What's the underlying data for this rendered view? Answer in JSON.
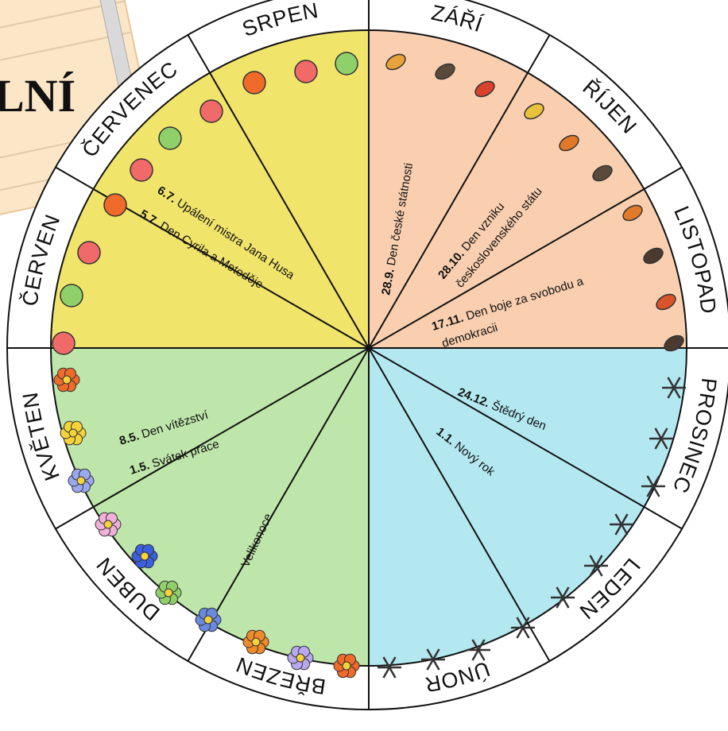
{
  "header": {
    "title": "LNÍ"
  },
  "months": [
    "ZÁŘÍ",
    "ŘÍJEN",
    "LISTOPAD",
    "PROSINEC",
    "LEDEN",
    "ÚNOR",
    "BŘEZEN",
    "DUBEN",
    "KVĚTEN",
    "ČERVEN",
    "ČERVENEC",
    "SRPEN"
  ],
  "events": [
    {
      "date": "6.7.",
      "lines": [
        "Upálení mistra Jana Husa"
      ]
    },
    {
      "date": "5.7.",
      "lines": [
        "Den Cyrila a Metoděje"
      ]
    },
    {
      "date": "28.9.",
      "lines": [
        "Den české státnosti"
      ]
    },
    {
      "date": "28.10.",
      "lines": [
        "Den vzniku",
        "československého státu"
      ]
    },
    {
      "date": "17.11.",
      "lines": [
        "Den boje za svobodu a",
        "demokracii"
      ]
    },
    {
      "date": "24.12.",
      "lines": [
        "Štědrý den"
      ]
    },
    {
      "date": "1.1.",
      "lines": [
        "Nový rok"
      ]
    },
    {
      "date": "8.5.",
      "lines": [
        "Den vítězství"
      ]
    },
    {
      "date": "1.5.",
      "lines": [
        "Svátek práce"
      ]
    }
  ],
  "labels": [
    "Velikonoce"
  ]
}
